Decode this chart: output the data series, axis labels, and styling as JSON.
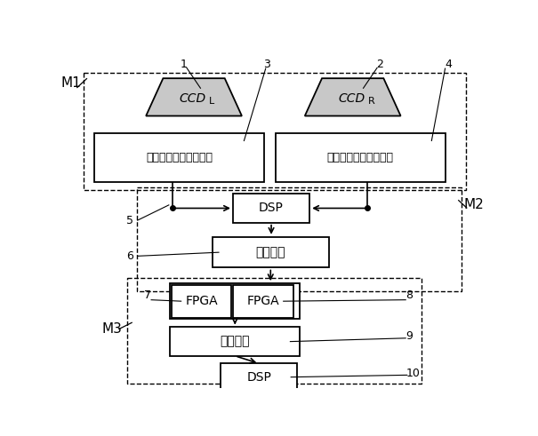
{
  "fig_width": 6.05,
  "fig_height": 4.91,
  "dpi": 100,
  "bg_color": "#ffffff",
  "M1_label": "M1",
  "M2_label": "M2",
  "M3_label": "M3",
  "ccd_l_text": "CCD",
  "ccd_l_sub": "L",
  "ccd_r_text": "CCD",
  "ccd_r_sub": "R",
  "proc_left_text": "可编程视频信号处理器",
  "proc_right_text": "可编程视频信号处理器",
  "dsp_top_text": "DSP",
  "mem_top_text": "存储芯片",
  "fpga_left_text": "FPGA",
  "fpga_right_text": "FPGA",
  "mem_bot_text": "存储芯片",
  "dsp_bot_text": "DSP",
  "num_labels": [
    "1",
    "2",
    "3",
    "4",
    "5",
    "6",
    "7",
    "8",
    "9",
    "10"
  ]
}
